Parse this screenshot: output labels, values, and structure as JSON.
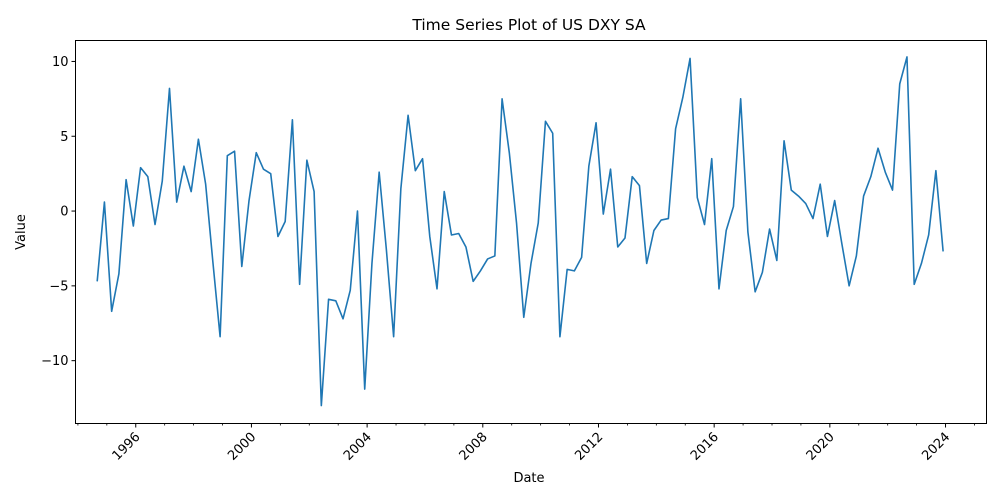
{
  "chart_data": {
    "type": "line",
    "title": "Time Series Plot of US DXY SA",
    "xlabel": "Date",
    "ylabel": "Value",
    "x_ticks": [
      "1996",
      "2000",
      "2004",
      "2008",
      "2012",
      "2016",
      "2020",
      "2024"
    ],
    "y_ticks": [
      -10,
      -5,
      0,
      5,
      10
    ],
    "xlim": [
      "1993-12-01",
      "2025-06-01"
    ],
    "ylim": [
      -14.2,
      11.4
    ],
    "grid": false,
    "line_color": "#1f77b4",
    "series": [
      {
        "x": [
          "1994-09",
          "1994-12",
          "1995-03",
          "1995-06",
          "1995-09",
          "1995-12",
          "1996-03",
          "1996-06",
          "1996-09",
          "1996-12",
          "1997-03",
          "1997-06",
          "1997-09",
          "1997-12",
          "1998-03",
          "1998-06",
          "1998-09",
          "1998-12",
          "1999-03",
          "1999-06",
          "1999-09",
          "1999-12",
          "2000-03",
          "2000-06",
          "2000-09",
          "2000-12",
          "2001-03",
          "2001-06",
          "2001-09",
          "2001-12",
          "2002-03",
          "2002-06",
          "2002-09",
          "2002-12",
          "2003-03",
          "2003-06",
          "2003-09",
          "2003-12",
          "2004-03",
          "2004-06",
          "2004-09",
          "2004-12",
          "2005-03",
          "2005-06",
          "2005-09",
          "2005-12",
          "2006-03",
          "2006-06",
          "2006-09",
          "2006-12",
          "2007-03",
          "2007-06",
          "2007-09",
          "2007-12",
          "2008-03",
          "2008-06",
          "2008-09",
          "2008-12",
          "2009-03",
          "2009-06",
          "2009-09",
          "2009-12",
          "2010-03",
          "2010-06",
          "2010-09",
          "2010-12",
          "2011-03",
          "2011-06",
          "2011-09",
          "2011-12",
          "2012-03",
          "2012-06",
          "2012-09",
          "2012-12",
          "2013-03",
          "2013-06",
          "2013-09",
          "2013-12",
          "2014-03",
          "2014-06",
          "2014-09",
          "2014-12",
          "2015-03",
          "2015-06",
          "2015-09",
          "2015-12",
          "2016-03",
          "2016-06",
          "2016-09",
          "2016-12",
          "2017-03",
          "2017-06",
          "2017-09",
          "2017-12",
          "2018-03",
          "2018-06",
          "2018-09",
          "2018-12",
          "2019-03",
          "2019-06",
          "2019-09",
          "2019-12",
          "2020-03",
          "2020-06",
          "2020-09",
          "2020-12",
          "2021-03",
          "2021-06",
          "2021-09",
          "2021-12",
          "2022-03",
          "2022-06",
          "2022-09",
          "2022-12",
          "2023-03",
          "2023-06",
          "2023-09",
          "2023-12"
        ],
        "values": [
          -4.7,
          0.6,
          -6.7,
          -4.2,
          2.1,
          -1.0,
          2.9,
          2.3,
          -0.9,
          2.0,
          8.2,
          0.6,
          3.0,
          1.3,
          4.8,
          1.8,
          -3.4,
          -8.4,
          3.7,
          4.0,
          -3.7,
          0.7,
          3.9,
          2.8,
          2.5,
          -1.7,
          -0.7,
          6.1,
          -4.9,
          3.4,
          1.3,
          -13.0,
          -5.9,
          -6.0,
          -7.2,
          -5.3,
          0.0,
          -11.9,
          -3.5,
          2.6,
          -2.6,
          -8.4,
          1.5,
          6.4,
          2.7,
          3.5,
          -1.7,
          -5.2,
          1.3,
          -1.6,
          -1.5,
          -2.4,
          -4.7,
          -4.0,
          -3.2,
          -3.0,
          7.5,
          3.9,
          -0.8,
          -7.1,
          -3.5,
          -0.8,
          6.0,
          5.2,
          -8.4,
          -3.9,
          -4.0,
          -3.1,
          3.0,
          5.9,
          -0.2,
          2.8,
          -2.4,
          -1.8,
          2.3,
          1.7,
          -3.5,
          -1.3,
          -0.6,
          -0.5,
          5.5,
          7.6,
          10.2,
          0.9,
          -0.9,
          3.5,
          -5.2,
          -1.3,
          0.3,
          7.5,
          -1.4,
          -5.4,
          -4.1,
          -1.2,
          -3.3,
          4.7,
          1.4,
          1.0,
          0.5,
          -0.5,
          1.8,
          -1.7,
          0.7,
          -2.2,
          -5.0,
          -3.0,
          1.0,
          2.3,
          4.2,
          2.6,
          1.4,
          8.5,
          10.3,
          -4.9,
          -3.5,
          -1.6,
          2.7,
          -2.7
        ]
      }
    ]
  }
}
